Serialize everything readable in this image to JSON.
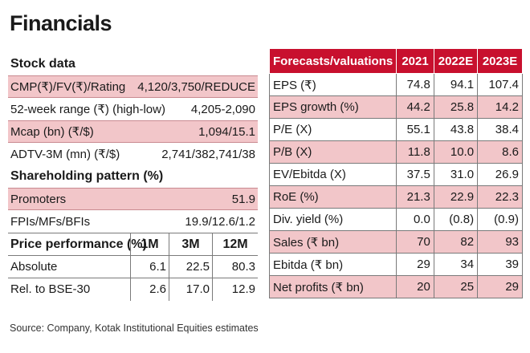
{
  "title": "Financials",
  "stock_data": {
    "heading": "Stock data",
    "rows": [
      {
        "label": "CMP(₹)/FV(₹)/Rating",
        "value": "4,120/3,750/REDUCE"
      },
      {
        "label": "52-week range (₹) (high-low)",
        "value": "4,205-2,090"
      },
      {
        "label": "Mcap (bn) (₹/$)",
        "value": "1,094/15.1"
      },
      {
        "label": "ADTV-3M (mn) (₹/$)",
        "value": "2,741/382,741/38"
      }
    ]
  },
  "shareholding": {
    "heading": "Shareholding pattern (%)",
    "rows": [
      {
        "label": "Promoters",
        "value": "51.9"
      },
      {
        "label": "FPIs/MFs/BFIs",
        "value": "19.9/12.6/1.2"
      }
    ]
  },
  "price_performance": {
    "heading": "Price performance (%)",
    "columns": [
      "1M",
      "3M",
      "12M"
    ],
    "rows": [
      {
        "label": "Absolute",
        "values": [
          "6.1",
          "22.5",
          "80.3"
        ]
      },
      {
        "label": "Rel. to BSE-30",
        "values": [
          "2.6",
          "17.0",
          "12.9"
        ]
      }
    ]
  },
  "forecasts": {
    "heading": "Forecasts/valuations",
    "columns": [
      "2021",
      "2022E",
      "2023E"
    ],
    "rows": [
      {
        "label": "EPS (₹)",
        "values": [
          "74.8",
          "94.1",
          "107.4"
        ]
      },
      {
        "label": "EPS growth (%)",
        "values": [
          "44.2",
          "25.8",
          "14.2"
        ]
      },
      {
        "label": "P/E (X)",
        "values": [
          "55.1",
          "43.8",
          "38.4"
        ]
      },
      {
        "label": "P/B (X)",
        "values": [
          "11.8",
          "10.0",
          "8.6"
        ]
      },
      {
        "label": "EV/Ebitda (X)",
        "values": [
          "37.5",
          "31.0",
          "26.9"
        ]
      },
      {
        "label": "RoE (%)",
        "values": [
          "21.3",
          "22.9",
          "22.3"
        ]
      },
      {
        "label": "Div. yield (%)",
        "values": [
          "0.0",
          "(0.8)",
          "(0.9)"
        ]
      },
      {
        "label": "Sales (₹ bn)",
        "values": [
          "70",
          "82",
          "93"
        ]
      },
      {
        "label": "Ebitda (₹ bn)",
        "values": [
          "29",
          "34",
          "39"
        ]
      },
      {
        "label": "Net profits (₹ bn)",
        "values": [
          "20",
          "25",
          "29"
        ]
      }
    ]
  },
  "source": "Source: Company, Kotak Institutional Equities estimates",
  "colors": {
    "header_red": "#c8102e",
    "row_pink": "#f2c6c9"
  }
}
